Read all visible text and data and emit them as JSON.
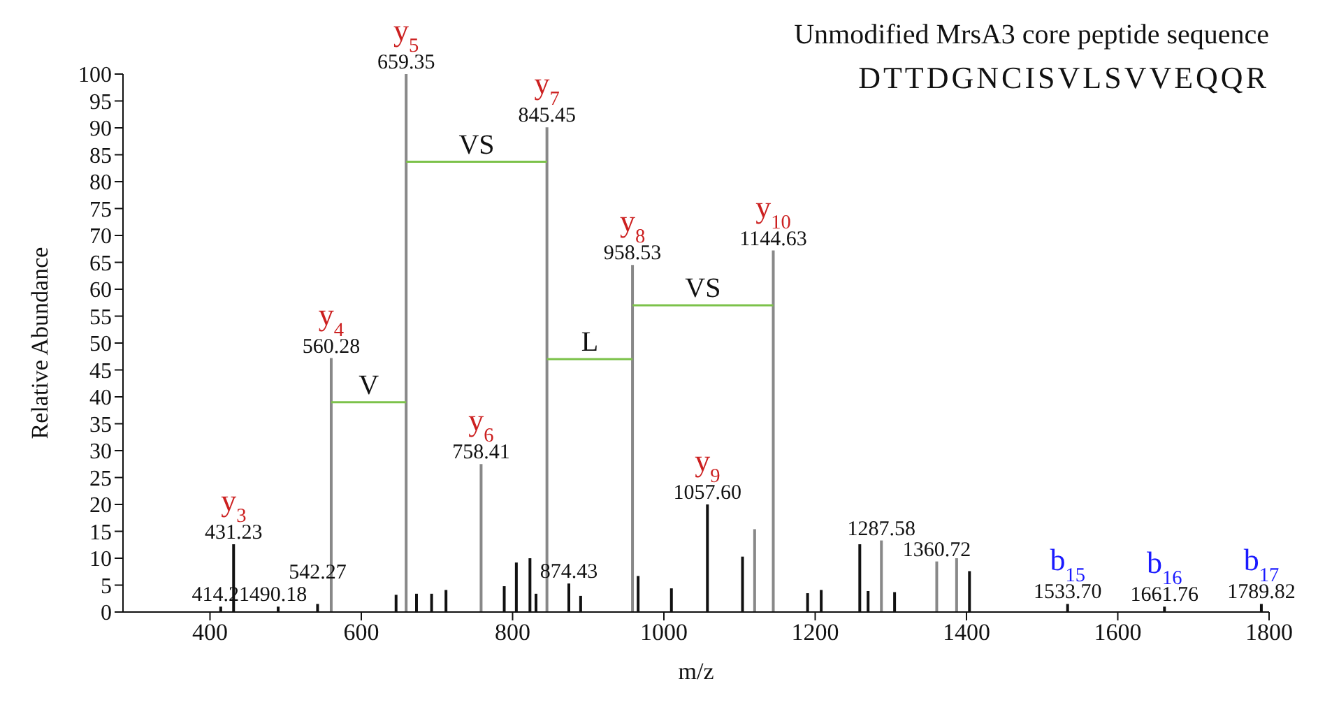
{
  "chart_data": {
    "type": "bar",
    "title": "Unmodified MrsA3 core peptide sequence",
    "subtitle": "DTTDGNCISVLSVVEQQR",
    "xlabel": "m/z",
    "ylabel": "Relative Abundance",
    "xlim": [
      285,
      1800
    ],
    "xticks": [
      400,
      600,
      800,
      1000,
      1200,
      1400,
      1600,
      1800
    ],
    "ylim": [
      0,
      100
    ],
    "yticks": [
      0,
      5,
      10,
      15,
      20,
      25,
      30,
      35,
      40,
      45,
      50,
      55,
      60,
      65,
      70,
      75,
      80,
      85,
      90,
      95,
      100
    ],
    "grid": false,
    "series": [
      {
        "x": [
          414.21,
          431.23,
          490.18,
          542.27,
          560.28,
          646,
          659.35,
          673,
          693,
          712,
          758.41,
          789,
          805,
          823,
          831,
          845.45,
          874.43,
          890,
          958.53,
          966,
          1010,
          1057.6,
          1104,
          1120,
          1144.63,
          1190,
          1208,
          1259,
          1270,
          1287.58,
          1305,
          1360.72,
          1387,
          1404,
          1533.7,
          1661.76,
          1789.82
        ],
        "values": [
          1.0,
          12.6,
          1.0,
          1.5,
          47.2,
          3.2,
          100,
          3.4,
          3.4,
          4.1,
          27.5,
          4.8,
          9.2,
          10.0,
          3.4,
          90.1,
          5.3,
          3.0,
          64.5,
          6.7,
          4.4,
          20,
          10.3,
          15.4,
          67.2,
          3.5,
          4.1,
          12.6,
          3.9,
          13.3,
          3.7,
          9.4,
          10.0,
          7.6,
          1.5,
          1.0,
          1.5
        ],
        "colors": [
          "#111111",
          "#111111",
          "#111111",
          "#111111",
          "#888888",
          "#111111",
          "#888888",
          "#111111",
          "#111111",
          "#111111",
          "#888888",
          "#111111",
          "#111111",
          "#111111",
          "#111111",
          "#888888",
          "#111111",
          "#111111",
          "#888888",
          "#111111",
          "#111111",
          "#111111",
          "#111111",
          "#888888",
          "#888888",
          "#111111",
          "#111111",
          "#111111",
          "#111111",
          "#888888",
          "#111111",
          "#888888",
          "#888888",
          "#111111",
          "#111111",
          "#111111",
          "#111111"
        ]
      },
      {
        "type": "line",
        "x": [
          560.28,
          659.35
        ],
        "values": [
          39,
          39
        ],
        "color": "#7cc24a"
      },
      {
        "type": "line",
        "x": [
          659.35,
          845.45
        ],
        "values": [
          83.7,
          83.7
        ],
        "color": "#7cc24a"
      },
      {
        "type": "line",
        "x": [
          845.45,
          958.53
        ],
        "values": [
          47,
          47
        ],
        "color": "#7cc24a"
      },
      {
        "type": "line",
        "x": [
          958.53,
          1144.63
        ],
        "values": [
          57,
          57
        ],
        "color": "#7cc24a"
      }
    ],
    "annotations": [
      {
        "text": "414.21",
        "x": 414.21,
        "y": 1.0
      },
      {
        "text": "431.23",
        "x": 431.23,
        "y": 12.6
      },
      {
        "text": "490.18",
        "x": 490.18,
        "y": 1.0
      },
      {
        "text": "542.27",
        "x": 542.27,
        "y": 1.5
      },
      {
        "text": "560.28",
        "x": 560.28,
        "y": 47.2
      },
      {
        "text": "659.35",
        "x": 659.35,
        "y": 100
      },
      {
        "text": "758.41",
        "x": 758.41,
        "y": 27.5
      },
      {
        "text": "845.45",
        "x": 845.45,
        "y": 90.1
      },
      {
        "text": "874.43",
        "x": 874.43,
        "y": 5.3
      },
      {
        "text": "958.53",
        "x": 958.53,
        "y": 64.5
      },
      {
        "text": "1057.60",
        "x": 1057.6,
        "y": 20
      },
      {
        "text": "1144.63",
        "x": 1144.63,
        "y": 67.2
      },
      {
        "text": "1287.58",
        "x": 1287.58,
        "y": 13.3
      },
      {
        "text": "1360.72",
        "x": 1360.72,
        "y": 9.4
      },
      {
        "text": "1533.70",
        "x": 1533.7,
        "y": 1.5
      },
      {
        "text": "1661.76",
        "x": 1661.76,
        "y": 1.0
      },
      {
        "text": "1789.82",
        "x": 1789.82,
        "y": 1.5
      },
      {
        "text": "y$_{3}$",
        "x": 431.23,
        "y": 12.6
      },
      {
        "text": "y$_{4}$",
        "x": 560.28,
        "y": 47.2
      },
      {
        "text": "y$_{5}$",
        "x": 659.35,
        "y": 100
      },
      {
        "text": "y$_{6}$",
        "x": 758.41,
        "y": 27.5
      },
      {
        "text": "y$_{7}$",
        "x": 845.45,
        "y": 90.1
      },
      {
        "text": "y$_{8}$",
        "x": 958.53,
        "y": 64.5
      },
      {
        "text": "y$_{9}$",
        "x": 1057.6,
        "y": 20
      },
      {
        "text": "y$_{10}$",
        "x": 1144.63,
        "y": 67.2
      },
      {
        "text": "b$_{15}$",
        "x": 1533.7,
        "y": 1.5
      },
      {
        "text": "b$_{16}$",
        "x": 1661.76,
        "y": 1.0
      },
      {
        "text": "b$_{17}$",
        "x": 1789.82,
        "y": 1.5
      },
      {
        "text": "V",
        "x": 609.8,
        "y": 39
      },
      {
        "text": "VS",
        "x": 752.4,
        "y": 83.7
      },
      {
        "text": "L",
        "x": 902,
        "y": 47
      },
      {
        "text": "VS",
        "x": 1051.6,
        "y": 57
      }
    ]
  }
}
